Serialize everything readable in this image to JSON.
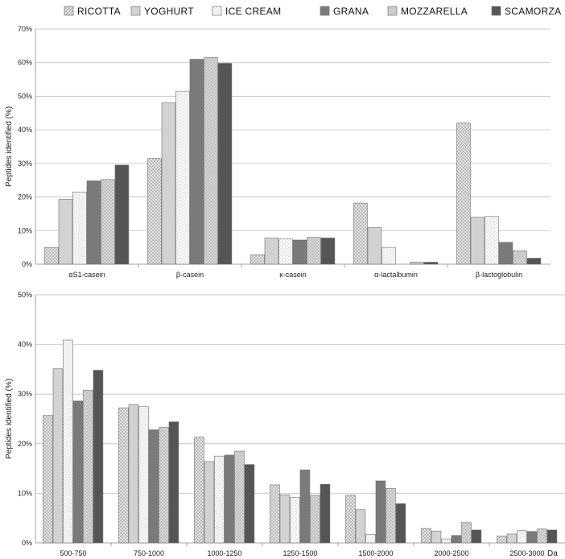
{
  "legend": {
    "placement": "top-center",
    "entries": [
      "RICOTTA",
      "YOGHURT",
      "ICE CREAM",
      "GRANA",
      "MOZZARELLA",
      "SCAMORZA"
    ]
  },
  "series_styles": [
    {
      "fill": "#e3e3e3",
      "pattern": "crosshatch"
    },
    {
      "fill": "#d2d2d2",
      "pattern": "solid"
    },
    {
      "fill": "#ffffff",
      "pattern": "dots"
    },
    {
      "fill": "#7a7a7a",
      "pattern": "solid"
    },
    {
      "fill": "#bdbdbd",
      "pattern": "diamond"
    },
    {
      "fill": "#555555",
      "pattern": "solid"
    }
  ],
  "chart_data": [
    {
      "type": "bar",
      "ylabel": "Peptides identified (%)",
      "ylim": [
        0,
        70
      ],
      "yticks": [
        0,
        10,
        20,
        30,
        40,
        50,
        60,
        70
      ],
      "ytick_suffix": "%",
      "grid": true,
      "unit_label": "",
      "categories": [
        "αS1-casein",
        "β-casein",
        "κ-casein",
        "α-lactalbumin",
        "β-lactoglobulin"
      ],
      "series": [
        {
          "name": "RICOTTA",
          "values": [
            5.0,
            31.5,
            2.8,
            18.2,
            42.0
          ]
        },
        {
          "name": "YOGHURT",
          "values": [
            19.3,
            48.0,
            7.8,
            10.9,
            14.0
          ]
        },
        {
          "name": "ICE CREAM",
          "values": [
            21.5,
            51.5,
            7.5,
            5.0,
            14.2
          ]
        },
        {
          "name": "GRANA",
          "values": [
            24.8,
            61.0,
            7.2,
            0,
            6.5
          ]
        },
        {
          "name": "MOZZARELLA",
          "values": [
            25.2,
            61.5,
            8.0,
            0.6,
            4.0
          ]
        },
        {
          "name": "SCAMORZA",
          "values": [
            29.5,
            59.8,
            7.8,
            0.6,
            1.8
          ]
        }
      ]
    },
    {
      "type": "bar",
      "ylabel": "Peptides identified (%)",
      "ylim": [
        0,
        50
      ],
      "yticks": [
        0,
        10,
        20,
        30,
        40,
        50
      ],
      "ytick_suffix": "%",
      "grid": true,
      "unit_label": "Da",
      "categories": [
        "500-750",
        "750-1000",
        "1000-1250",
        "1250-1500",
        "1500-2000",
        "2000-2500",
        "2500-3000"
      ],
      "series": [
        {
          "name": "RICOTTA",
          "values": [
            25.7,
            27.2,
            21.3,
            11.7,
            9.6,
            2.9,
            1.4
          ]
        },
        {
          "name": "YOGHURT",
          "values": [
            35.1,
            27.9,
            16.4,
            9.7,
            6.7,
            2.4,
            1.8
          ]
        },
        {
          "name": "ICE CREAM",
          "values": [
            40.9,
            27.5,
            17.5,
            9.2,
            1.7,
            0.8,
            2.5
          ]
        },
        {
          "name": "GRANA",
          "values": [
            28.6,
            22.8,
            17.7,
            14.7,
            12.5,
            1.5,
            2.3
          ]
        },
        {
          "name": "MOZZARELLA",
          "values": [
            30.8,
            23.3,
            18.5,
            9.6,
            11.0,
            4.1,
            2.8
          ]
        },
        {
          "name": "SCAMORZA",
          "values": [
            34.8,
            24.4,
            15.8,
            11.8,
            7.9,
            2.6,
            2.6
          ]
        }
      ]
    }
  ]
}
